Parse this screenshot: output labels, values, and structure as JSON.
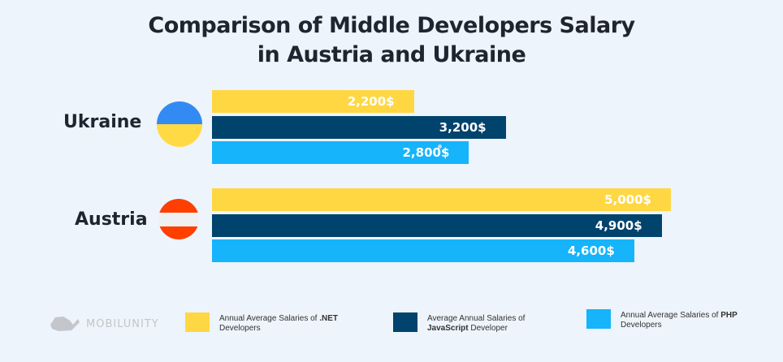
{
  "chart_data": {
    "type": "bar",
    "orientation": "horizontal",
    "title": "Comparison of Middle Developers Salary in Austria and Ukraine",
    "title_lines": [
      "Comparison of Middle Developers Salary",
      "in Austria and Ukraine"
    ],
    "categories": [
      "Ukraine",
      "Austria"
    ],
    "series": [
      {
        "name": "Annual Average Salaries of .NET Developers",
        "color": "#ffd743",
        "values": [
          2200,
          5000
        ],
        "labels": [
          "2,200$",
          "5,000$"
        ]
      },
      {
        "name": "Average Annual Salaries of JavaScript Developer",
        "color": "#00436d",
        "values": [
          3200,
          4900
        ],
        "labels": [
          "3,200$",
          "4,900$"
        ]
      },
      {
        "name": "Annual Average Salaries of PHP Developers",
        "color": "#15b4fb",
        "values": [
          2800,
          4600
        ],
        "labels": [
          "2,800$",
          "4,600$"
        ]
      }
    ],
    "legend_placement": "bottom",
    "grid": false
  },
  "legend": [
    {
      "pre": "Annual Average Salaries of ",
      "bold": ".NET",
      "post": "",
      "line2": "Developers"
    },
    {
      "pre": "Average Annual Salaries of",
      "bold": "JavaScript",
      "post": " Developer",
      "line2": ""
    },
    {
      "pre": "Annual Average Salaries of ",
      "bold": "PHP",
      "post": "",
      "line2": "Developers"
    }
  ],
  "logo": {
    "text": "MOBILUNITY"
  }
}
